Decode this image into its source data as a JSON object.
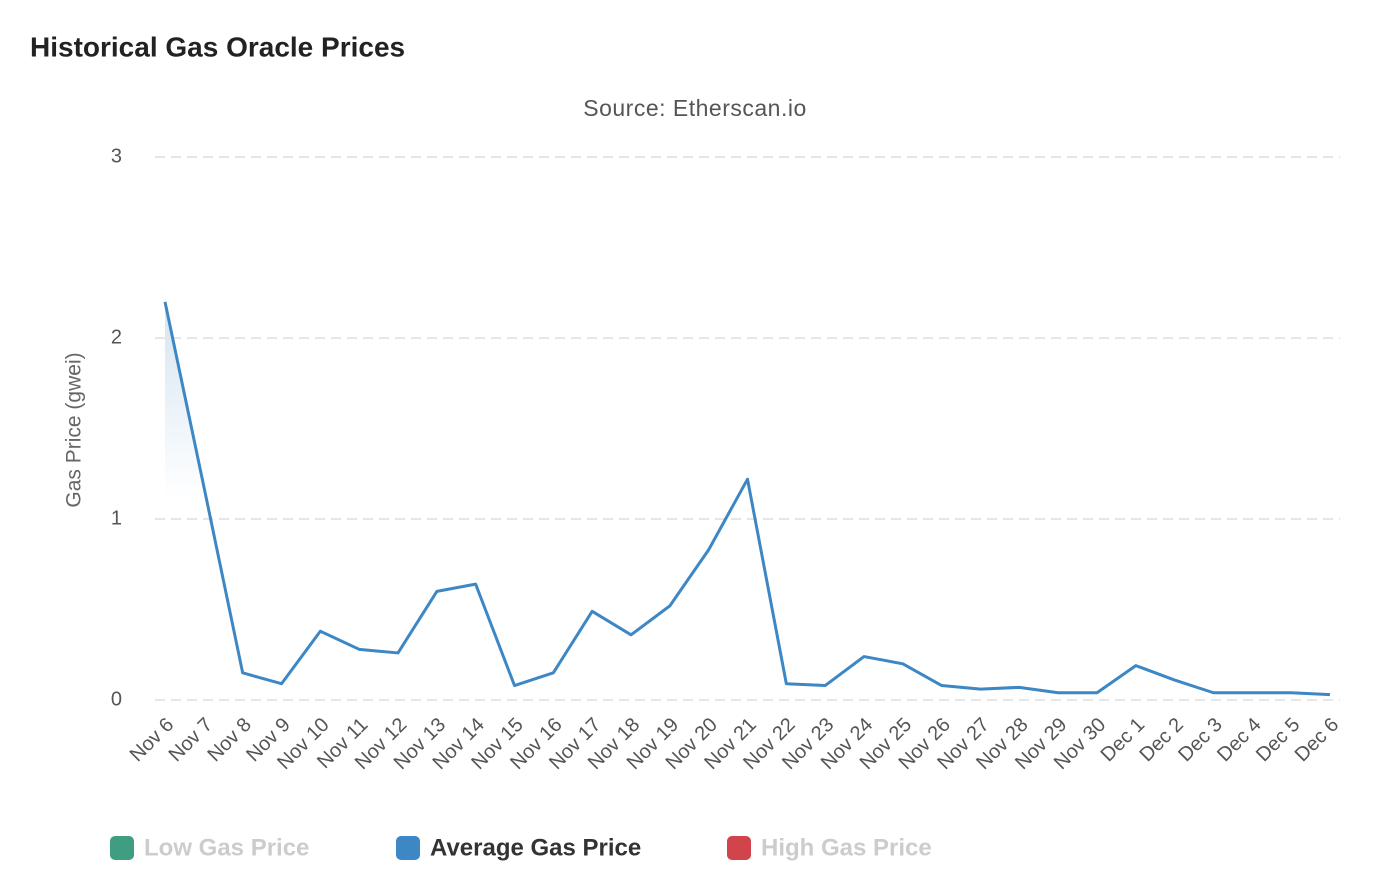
{
  "chart_data": {
    "type": "line",
    "title": "Historical Gas Oracle Prices",
    "subtitle": "Source: Etherscan.io",
    "y_label": "Gas Price (gwei)",
    "categories": [
      "Nov 6",
      "Nov 7",
      "Nov 8",
      "Nov 9",
      "Nov 10",
      "Nov 11",
      "Nov 12",
      "Nov 13",
      "Nov 14",
      "Nov 15",
      "Nov 16",
      "Nov 17",
      "Nov 18",
      "Nov 19",
      "Nov 20",
      "Nov 21",
      "Nov 22",
      "Nov 23",
      "Nov 24",
      "Nov 25",
      "Nov 26",
      "Nov 27",
      "Nov 28",
      "Nov 29",
      "Nov 30",
      "Dec 1",
      "Dec 2",
      "Dec 3",
      "Dec 4",
      "Dec 5",
      "Dec 6"
    ],
    "series": [
      {
        "name": "Low Gas Price",
        "color": "#3f9e81",
        "visible": false
      },
      {
        "name": "Average Gas Price",
        "color": "#3d87c4",
        "visible": true,
        "values": [
          2.2,
          1.18,
          0.15,
          0.09,
          0.38,
          0.28,
          0.26,
          0.6,
          0.64,
          0.08,
          0.15,
          0.49,
          0.36,
          0.52,
          0.83,
          1.22,
          0.09,
          0.08,
          0.24,
          0.2,
          0.08,
          0.06,
          0.07,
          0.04,
          0.04,
          0.19,
          0.11,
          0.04,
          0.04,
          0.04,
          0.03
        ]
      },
      {
        "name": "High Gas Price",
        "color": "#d2444b",
        "visible": false
      }
    ],
    "ylim": [
      0,
      3
    ],
    "yticks": [
      0,
      1,
      2,
      3
    ],
    "grid": true
  }
}
